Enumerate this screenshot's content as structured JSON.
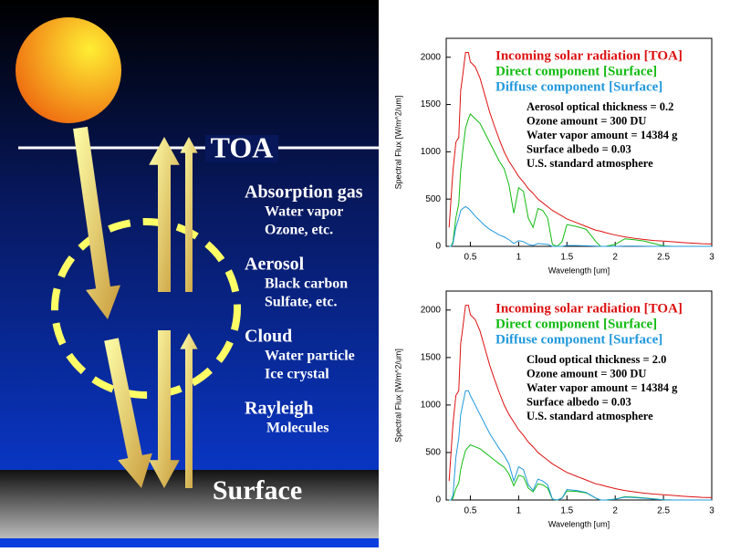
{
  "diagram": {
    "toa": "TOA",
    "surface": "Surface",
    "groups": [
      {
        "title": "Absorption gas",
        "items": [
          "Water vapor",
          "Ozone, etc."
        ]
      },
      {
        "title": "Aerosol",
        "items": [
          "Black carbon",
          "Sulfate, etc."
        ]
      },
      {
        "title": "Cloud",
        "items": [
          "Water particle",
          "Ice crystal"
        ]
      },
      {
        "title": "Rayleigh",
        "items": [
          "Molecules"
        ]
      }
    ]
  },
  "chart_data": [
    {
      "type": "line",
      "xlabel": "Wavelength [um]",
      "ylabel": "Spectral Flux [W/m^2/um]",
      "xlim": [
        0.25,
        3
      ],
      "ylim": [
        0,
        2200
      ],
      "xticks": [
        0.5,
        1,
        1.5,
        2,
        2.5,
        3
      ],
      "yticks": [
        0,
        500,
        1000,
        1500,
        2000
      ],
      "annotations": [
        "Aerosol optical thickness = 0.2",
        "Ozone amount = 300 DU",
        "Water vapor amount = 14384 g",
        "Surface albedo = 0.03",
        "U.S. standard atmosphere"
      ],
      "x": [
        0.28,
        0.3,
        0.32,
        0.35,
        0.38,
        0.4,
        0.42,
        0.45,
        0.48,
        0.5,
        0.55,
        0.6,
        0.65,
        0.7,
        0.75,
        0.8,
        0.85,
        0.9,
        0.95,
        1.0,
        1.05,
        1.1,
        1.15,
        1.2,
        1.25,
        1.3,
        1.35,
        1.4,
        1.45,
        1.5,
        1.6,
        1.7,
        1.8,
        1.85,
        1.9,
        2.0,
        2.1,
        2.2,
        2.3,
        2.4,
        2.5,
        2.6,
        2.7,
        2.8,
        2.9,
        3.0
      ],
      "series": [
        {
          "name": "Incoming solar radiation [TOA]",
          "color": "#dd1111",
          "values": [
            200,
            500,
            800,
            1100,
            1150,
            1650,
            1800,
            2050,
            2050,
            1950,
            1900,
            1780,
            1600,
            1420,
            1270,
            1130,
            1000,
            900,
            820,
            740,
            680,
            610,
            560,
            500,
            460,
            420,
            380,
            350,
            320,
            290,
            250,
            210,
            170,
            160,
            145,
            120,
            100,
            85,
            72,
            62,
            55,
            48,
            40,
            34,
            28,
            25
          ]
        },
        {
          "name": "Direct component [Surface]",
          "color": "#11bb11",
          "values": [
            0,
            0,
            50,
            300,
            450,
            800,
            1000,
            1250,
            1350,
            1400,
            1350,
            1300,
            1200,
            1100,
            1000,
            900,
            820,
            650,
            350,
            620,
            580,
            300,
            200,
            400,
            380,
            300,
            20,
            0,
            50,
            230,
            210,
            180,
            50,
            0,
            0,
            20,
            80,
            70,
            55,
            30,
            5,
            0,
            0,
            0,
            0,
            0
          ]
        },
        {
          "name": "Diffuse component [Surface]",
          "color": "#2299dd",
          "values": [
            0,
            0,
            30,
            200,
            300,
            380,
            400,
            420,
            400,
            380,
            320,
            270,
            220,
            180,
            150,
            120,
            100,
            70,
            30,
            60,
            50,
            20,
            10,
            30,
            25,
            20,
            0,
            0,
            0,
            10,
            8,
            6,
            2,
            0,
            0,
            0,
            2,
            2,
            1,
            0,
            0,
            0,
            0,
            0,
            0,
            0
          ]
        }
      ]
    },
    {
      "type": "line",
      "xlabel": "Wavelength [um]",
      "ylabel": "Spectral Flux [W/m^2/um]",
      "xlim": [
        0.25,
        3
      ],
      "ylim": [
        0,
        2200
      ],
      "xticks": [
        0.5,
        1,
        1.5,
        2,
        2.5,
        3
      ],
      "yticks": [
        0,
        500,
        1000,
        1500,
        2000
      ],
      "annotations": [
        "Cloud optical thickness = 2.0",
        "Ozone amount = 300 DU",
        "Water vapor amount = 14384 g",
        "Surface albedo = 0.03",
        "U.S. standard atmosphere"
      ],
      "x": [
        0.28,
        0.3,
        0.32,
        0.35,
        0.38,
        0.4,
        0.42,
        0.45,
        0.48,
        0.5,
        0.55,
        0.6,
        0.65,
        0.7,
        0.75,
        0.8,
        0.85,
        0.9,
        0.95,
        1.0,
        1.05,
        1.1,
        1.15,
        1.2,
        1.25,
        1.3,
        1.35,
        1.4,
        1.45,
        1.5,
        1.6,
        1.7,
        1.8,
        1.85,
        1.9,
        2.0,
        2.1,
        2.2,
        2.3,
        2.4,
        2.5,
        2.6,
        2.7,
        2.8,
        2.9,
        3.0
      ],
      "series": [
        {
          "name": "Incoming solar radiation [TOA]",
          "color": "#dd1111",
          "values": [
            200,
            500,
            800,
            1100,
            1150,
            1650,
            1800,
            2050,
            2050,
            1950,
            1900,
            1780,
            1600,
            1420,
            1270,
            1130,
            1000,
            900,
            820,
            740,
            680,
            610,
            560,
            500,
            460,
            420,
            380,
            350,
            320,
            290,
            250,
            210,
            170,
            160,
            145,
            120,
            100,
            85,
            72,
            62,
            55,
            48,
            40,
            34,
            28,
            25
          ]
        },
        {
          "name": "Direct component [Surface]",
          "color": "#11bb11",
          "values": [
            0,
            0,
            20,
            120,
            180,
            320,
            410,
            520,
            560,
            580,
            560,
            540,
            500,
            460,
            420,
            380,
            345,
            275,
            150,
            260,
            245,
            125,
            85,
            170,
            160,
            125,
            8,
            0,
            20,
            95,
            90,
            75,
            20,
            0,
            0,
            8,
            35,
            30,
            22,
            12,
            2,
            0,
            0,
            0,
            0,
            0
          ]
        },
        {
          "name": "Diffuse component [Surface]",
          "color": "#2299dd",
          "values": [
            0,
            0,
            50,
            450,
            650,
            900,
            1000,
            1150,
            1150,
            1100,
            1000,
            900,
            800,
            700,
            620,
            540,
            470,
            380,
            200,
            350,
            320,
            160,
            100,
            220,
            200,
            160,
            10,
            0,
            20,
            110,
            100,
            80,
            20,
            0,
            0,
            8,
            30,
            25,
            18,
            10,
            2,
            0,
            0,
            0,
            0,
            0
          ]
        }
      ]
    }
  ]
}
